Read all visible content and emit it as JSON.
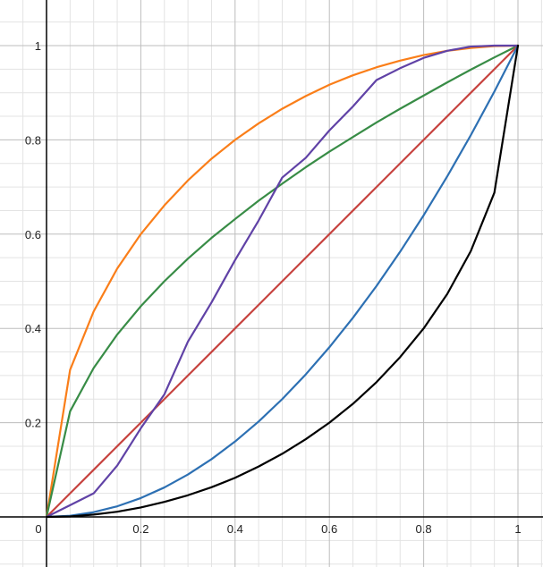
{
  "chart_data": {
    "type": "line",
    "title": "",
    "xlabel": "",
    "ylabel": "",
    "xlim": [
      -0.1,
      1.06
    ],
    "ylim": [
      -0.1,
      1.09
    ],
    "grid": true,
    "x_ticks": [
      {
        "value": 0,
        "label": "0"
      },
      {
        "value": 0.2,
        "label": "0.2"
      },
      {
        "value": 0.4,
        "label": "0.4"
      },
      {
        "value": 0.6,
        "label": "0.6"
      },
      {
        "value": 0.8,
        "label": "0.8"
      },
      {
        "value": 1,
        "label": "1"
      }
    ],
    "y_ticks": [
      {
        "value": 0.2,
        "label": "0.2"
      },
      {
        "value": 0.4,
        "label": "0.4"
      },
      {
        "value": 0.6,
        "label": "0.6"
      },
      {
        "value": 0.8,
        "label": "0.8"
      },
      {
        "value": 1,
        "label": "1"
      }
    ],
    "x": [
      0,
      0.05,
      0.1,
      0.15,
      0.2,
      0.25,
      0.3,
      0.35,
      0.4,
      0.45,
      0.5,
      0.55,
      0.6,
      0.65,
      0.7,
      0.75,
      0.8,
      0.85,
      0.9,
      0.95,
      1
    ],
    "series": [
      {
        "color": "#fa7e19",
        "values": [
          0,
          0.312,
          0.436,
          0.527,
          0.6,
          0.661,
          0.714,
          0.76,
          0.8,
          0.835,
          0.866,
          0.893,
          0.917,
          0.937,
          0.954,
          0.968,
          0.98,
          0.989,
          0.995,
          0.999,
          1
        ]
      },
      {
        "color": "#388c46",
        "values": [
          0,
          0.224,
          0.316,
          0.387,
          0.447,
          0.5,
          0.548,
          0.592,
          0.632,
          0.671,
          0.707,
          0.742,
          0.775,
          0.806,
          0.837,
          0.866,
          0.894,
          0.922,
          0.949,
          0.975,
          1
        ]
      },
      {
        "color": "#c74440",
        "values": [
          0,
          0.05,
          0.1,
          0.15,
          0.2,
          0.25,
          0.3,
          0.35,
          0.4,
          0.45,
          0.5,
          0.55,
          0.6,
          0.65,
          0.7,
          0.75,
          0.8,
          0.85,
          0.9,
          0.95,
          1
        ]
      },
      {
        "color": "#6042a6",
        "values": [
          0,
          0.025,
          0.05,
          0.109,
          0.188,
          0.26,
          0.372,
          0.455,
          0.545,
          0.629,
          0.72,
          0.762,
          0.82,
          0.871,
          0.927,
          0.952,
          0.974,
          0.989,
          0.998,
          1,
          1
        ]
      },
      {
        "color": "#2d70b3",
        "values": [
          0,
          0.0025,
          0.01,
          0.0225,
          0.04,
          0.0625,
          0.09,
          0.1225,
          0.16,
          0.2025,
          0.25,
          0.3025,
          0.36,
          0.4225,
          0.49,
          0.5625,
          0.64,
          0.7225,
          0.81,
          0.9025,
          1
        ]
      },
      {
        "color": "#000000",
        "values": [
          0,
          0.001,
          0.005,
          0.011,
          0.02,
          0.032,
          0.046,
          0.063,
          0.083,
          0.107,
          0.134,
          0.165,
          0.2,
          0.24,
          0.286,
          0.339,
          0.4,
          0.473,
          0.564,
          0.688,
          1
        ]
      }
    ]
  }
}
